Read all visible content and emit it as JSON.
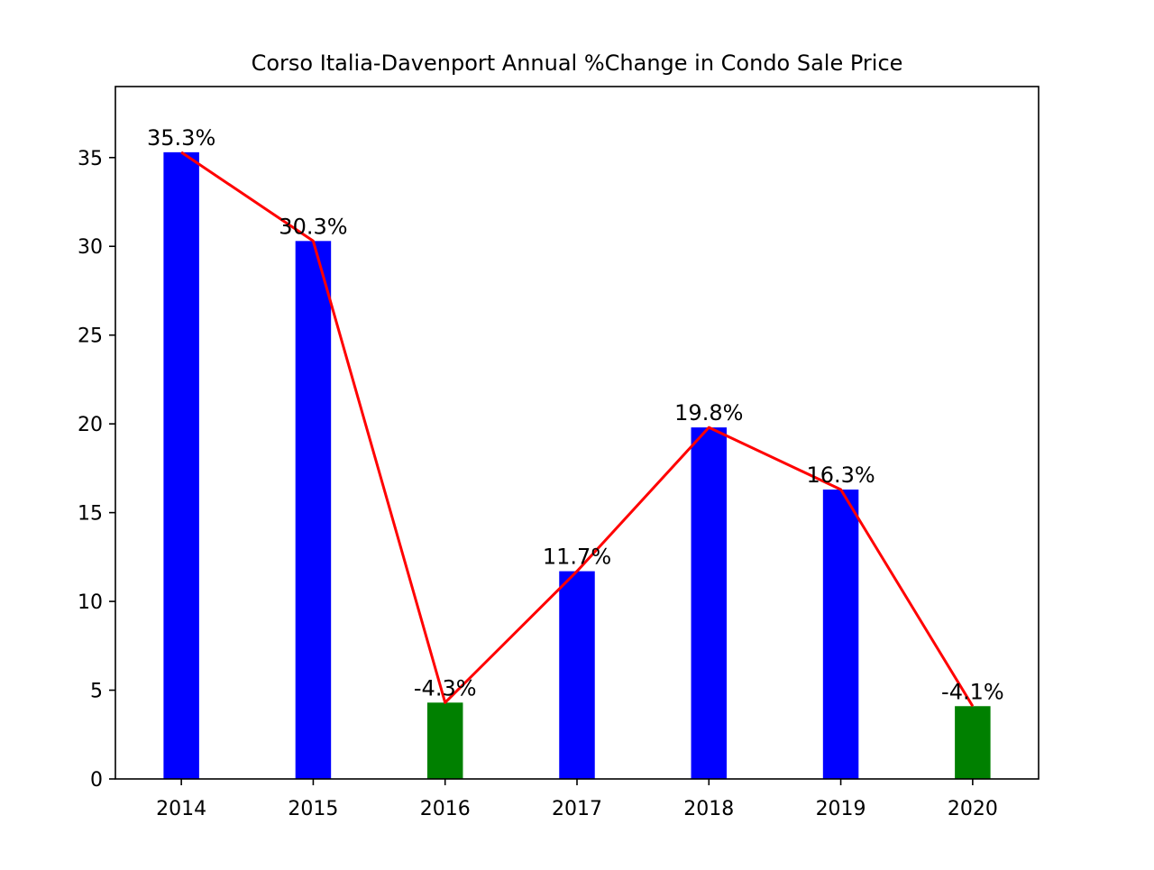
{
  "chart_data": {
    "type": "bar",
    "title": "Corso Italia-Davenport Annual %Change in Condo Sale Price",
    "xlabel": "",
    "ylabel": "",
    "categories": [
      "2014",
      "2015",
      "2016",
      "2017",
      "2018",
      "2019",
      "2020"
    ],
    "values": [
      35.3,
      30.3,
      4.3,
      11.7,
      19.8,
      16.3,
      4.1
    ],
    "data_labels": [
      "35.3%",
      "30.3%",
      "-4.3%",
      "11.7%",
      "19.8%",
      "16.3%",
      "-4.1%"
    ],
    "bar_colors": [
      "#0000ff",
      "#0000ff",
      "#008000",
      "#0000ff",
      "#0000ff",
      "#0000ff",
      "#008000"
    ],
    "line_color": "#ff0000",
    "ylim": [
      0,
      39
    ],
    "yticks": [
      0,
      5,
      10,
      15,
      20,
      25,
      30,
      35
    ],
    "grid": false,
    "legend": "none"
  }
}
